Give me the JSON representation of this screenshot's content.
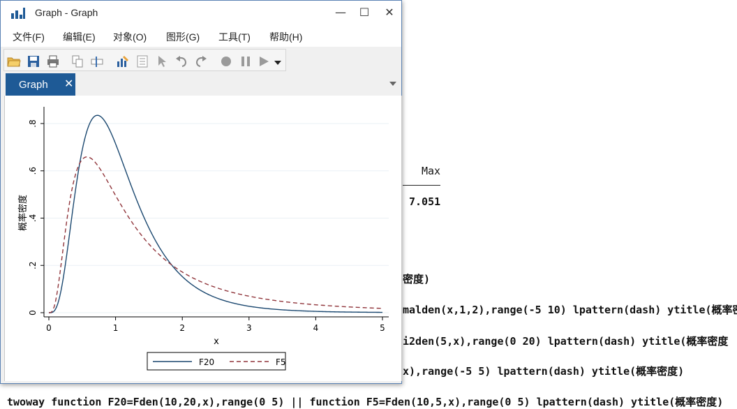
{
  "window": {
    "title": "Graph - Graph",
    "menu": [
      "文件(F)",
      "编辑(E)",
      "对象(O)",
      "图形(G)",
      "工具(T)",
      "帮助(H)"
    ],
    "tab_label": "Graph",
    "tab_close": "✕",
    "minimize": "—",
    "maximize": "☐",
    "close": "✕"
  },
  "toolbar_icons": [
    "open-folder-icon",
    "save-icon",
    "print-icon",
    "copy-icon",
    "rename-icon",
    "graph-editor-icon",
    "properties-icon",
    "pointer-icon",
    "undo-icon",
    "redo-icon",
    "record-icon",
    "pause-icon",
    "play-icon",
    "dropdown-icon"
  ],
  "console": {
    "header_max": "Max",
    "value_max": "7.051",
    "line1": "密度)",
    "line2": "malden(x,1,2),range(-5 10) lpattern(dash) ytitle(概率密",
    "line3": "i2den(5,x),range(0 20) lpattern(dash) ytitle(概率密度",
    "line4": "x),range(-5 5) lpattern(dash) ytitle(概率密度)",
    "line5": "twoway function F20=Fden(10,20,x),range(0 5) || function F5=Fden(10,5,x),range(0 5) lpattern(dash) ytitle(概率密度)"
  },
  "chart_data": {
    "type": "line",
    "title": "",
    "xlabel": "x",
    "ylabel": "概率密度",
    "xlim": [
      0,
      5
    ],
    "ylim": [
      0,
      0.85
    ],
    "xticks": [
      "0",
      "1",
      "2",
      "3",
      "4",
      "5"
    ],
    "xtick_values": [
      0,
      1,
      2,
      3,
      4,
      5
    ],
    "yticks": [
      "0",
      ".2",
      ".4",
      ".6",
      ".8"
    ],
    "ytick_values": [
      0,
      0.2,
      0.4,
      0.6,
      0.8
    ],
    "grid": true,
    "legend_position": "bottom",
    "series": [
      {
        "name": "F20",
        "color": "#1a476f",
        "dash": false,
        "df1": 10,
        "df2": 20
      },
      {
        "name": "F5",
        "color": "#90353b",
        "dash": true,
        "df1": 10,
        "df2": 5
      }
    ]
  }
}
